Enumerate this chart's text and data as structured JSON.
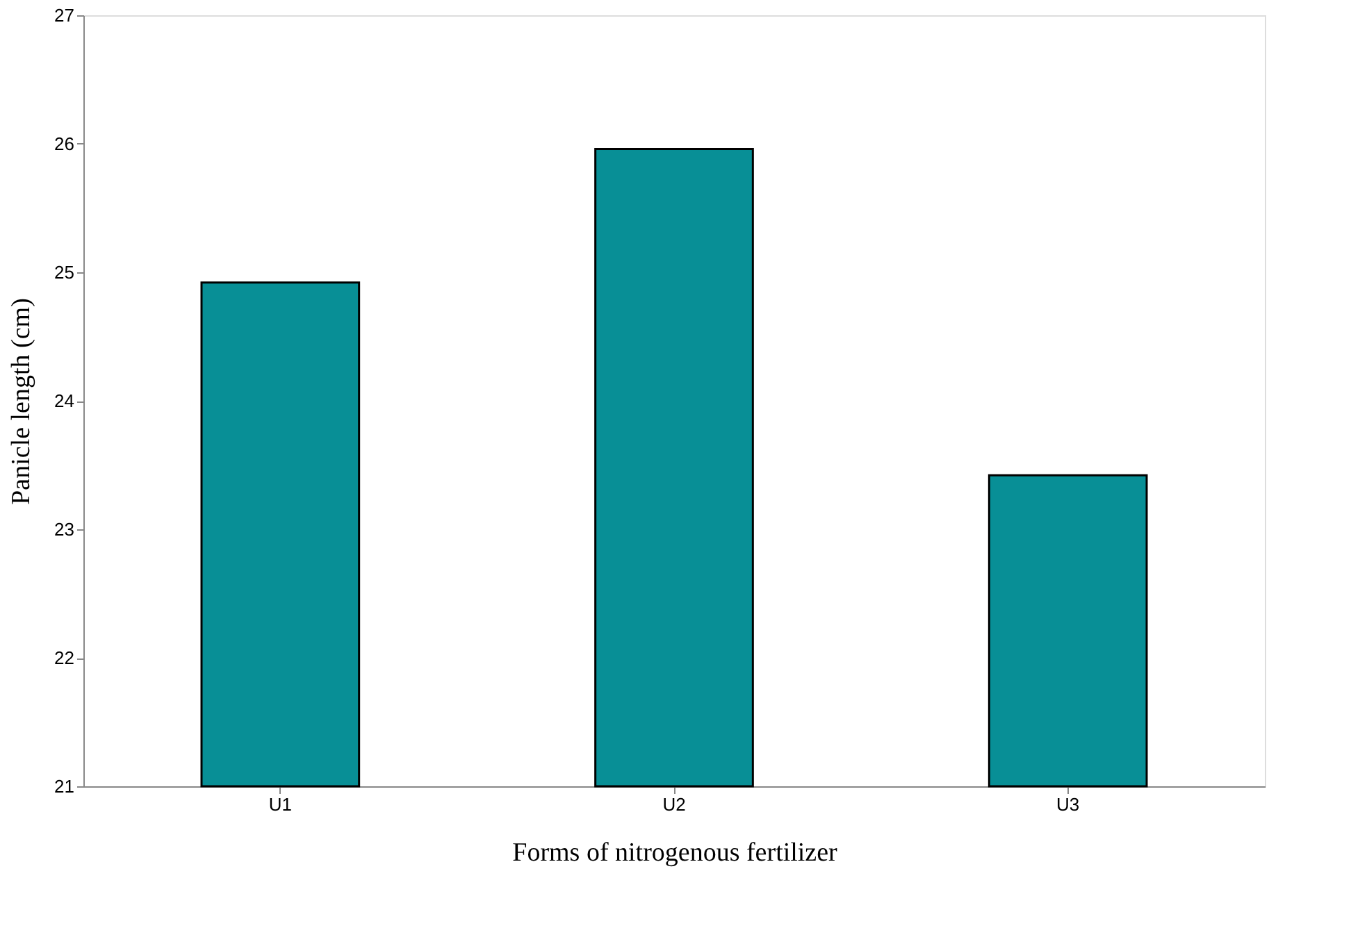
{
  "chart_data": {
    "type": "bar",
    "xlabel": "Forms of nitrogenous fertilizer",
    "ylabel": "Panicle length (cm)",
    "categories": [
      "U1",
      "U2",
      "U3"
    ],
    "values": [
      24.92,
      25.96,
      23.42
    ],
    "color": "#088f96",
    "ylim": [
      21,
      27
    ],
    "yticks": [
      21,
      22,
      23,
      24,
      25,
      26,
      27
    ],
    "grid": false
  }
}
